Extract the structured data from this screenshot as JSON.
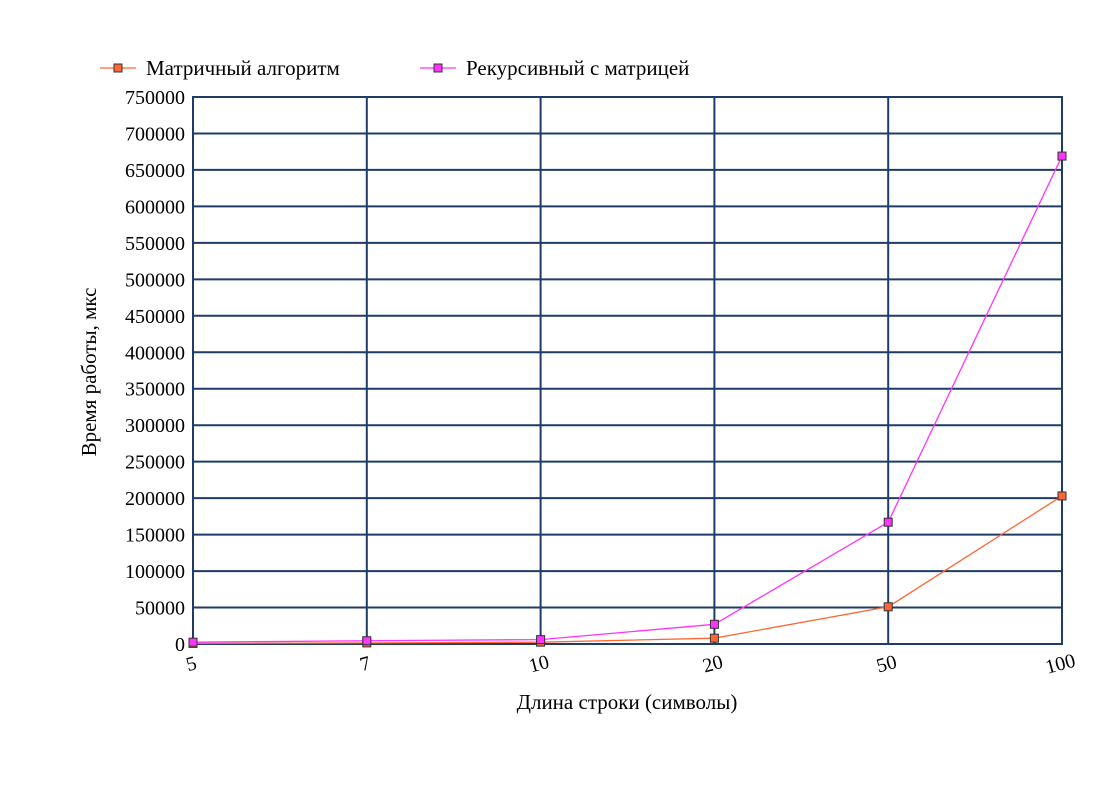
{
  "chart_data": {
    "type": "line",
    "title": "",
    "xlabel": "Длина строки (символы)",
    "ylabel": "Время работы, мкс",
    "categories": [
      "5",
      "7",
      "10",
      "20",
      "50",
      "100"
    ],
    "ylim": [
      0,
      750000
    ],
    "yticks": [
      "0",
      "50000",
      "100000",
      "150000",
      "200000",
      "250000",
      "300000",
      "350000",
      "400000",
      "450000",
      "500000",
      "550000",
      "600000",
      "650000",
      "700000",
      "750000"
    ],
    "grid": true,
    "legend_position": "top",
    "series": [
      {
        "name": "Матричный алгоритм",
        "color": "#ff6633",
        "marker_fill": "#ff6633",
        "values": [
          800,
          1500,
          2500,
          8000,
          51000,
          203000
        ]
      },
      {
        "name": "Рекурсивный с матрицей",
        "color": "#ff33ff",
        "marker_fill": "#ff33ff",
        "values": [
          2500,
          4500,
          6000,
          27000,
          167000,
          669000
        ]
      }
    ],
    "grid_color": "#1f3c66",
    "marker_edge": "#333333"
  }
}
